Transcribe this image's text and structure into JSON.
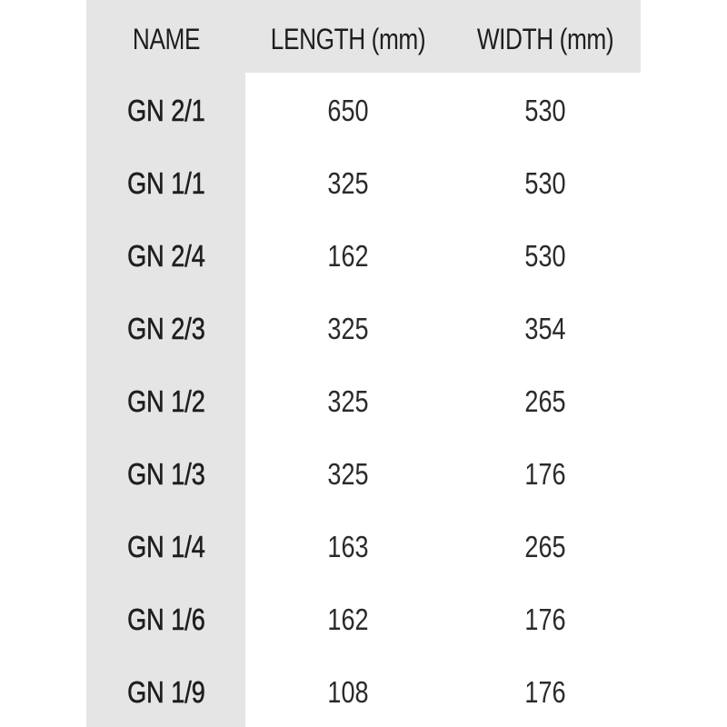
{
  "table": {
    "header": [
      "NAME",
      "LENGTH (mm)",
      "WIDTH (mm)"
    ],
    "rows": [
      [
        "GN 2/1",
        650,
        530
      ],
      [
        "GN 1/1",
        325,
        530
      ],
      [
        "GN 2/4",
        162,
        530
      ],
      [
        "GN 2/3",
        325,
        354
      ],
      [
        "GN 1/2",
        325,
        265
      ],
      [
        "GN 1/3",
        325,
        176
      ],
      [
        "GN 1/4",
        163,
        265
      ],
      [
        "GN 1/6",
        162,
        176
      ],
      [
        "GN 1/9",
        108,
        176
      ]
    ]
  }
}
